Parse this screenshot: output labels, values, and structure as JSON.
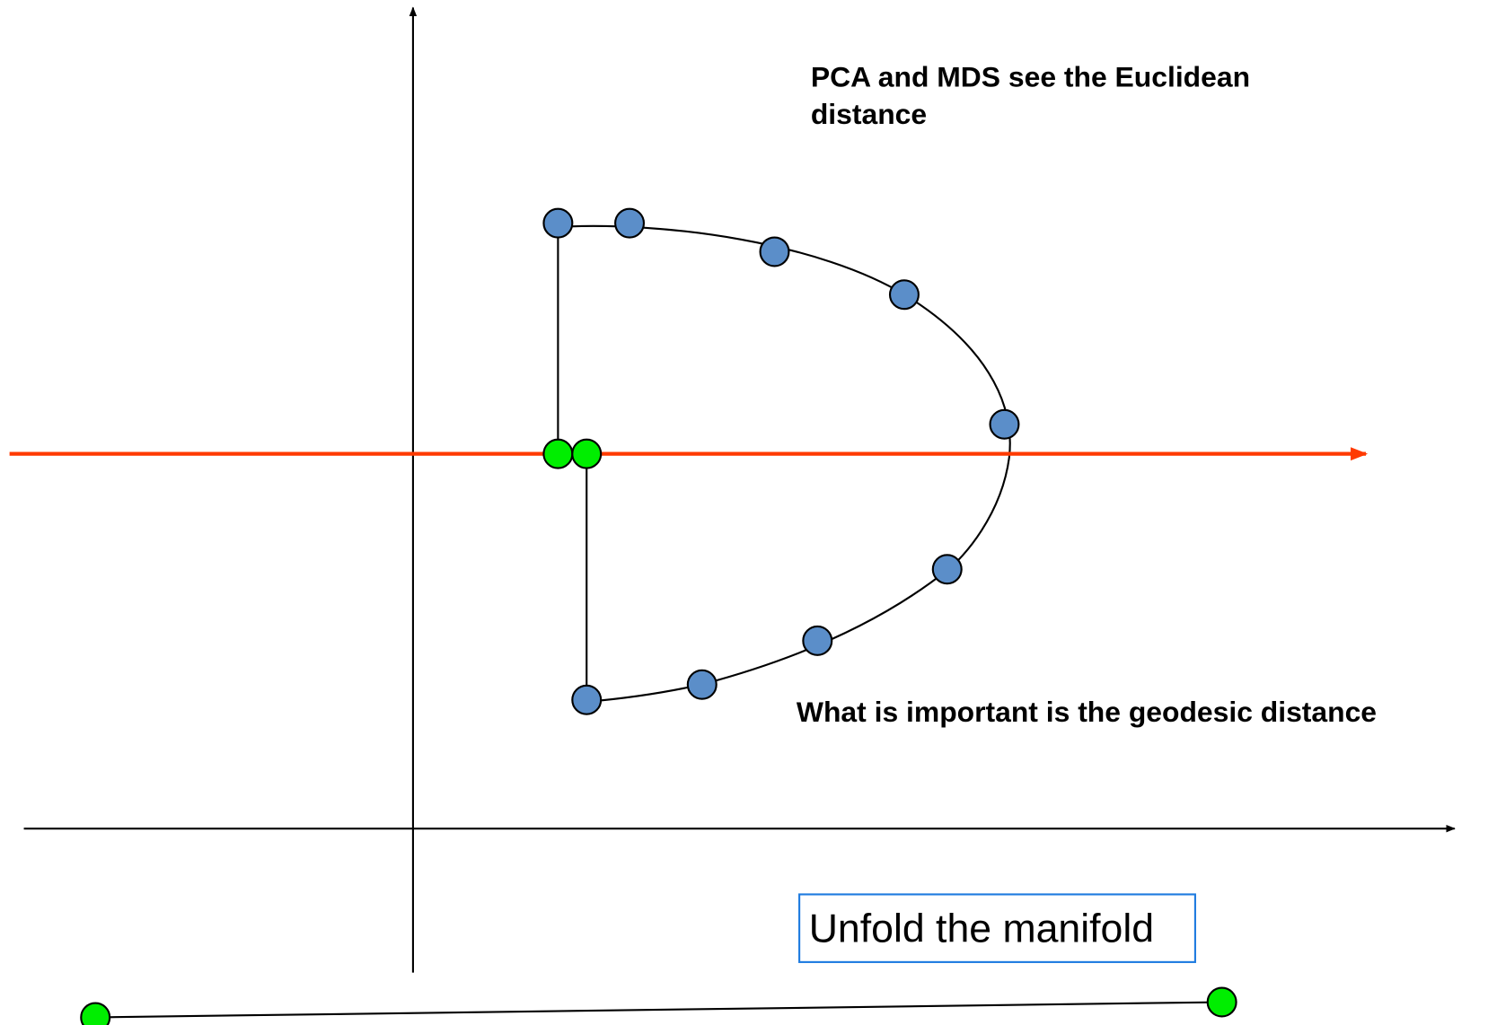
{
  "annotations": {
    "top": [
      "PCA and MDS see the Euclidean",
      "distance"
    ],
    "middle": "What is important is the geodesic distance",
    "box": "Unfold the manifold"
  }
}
